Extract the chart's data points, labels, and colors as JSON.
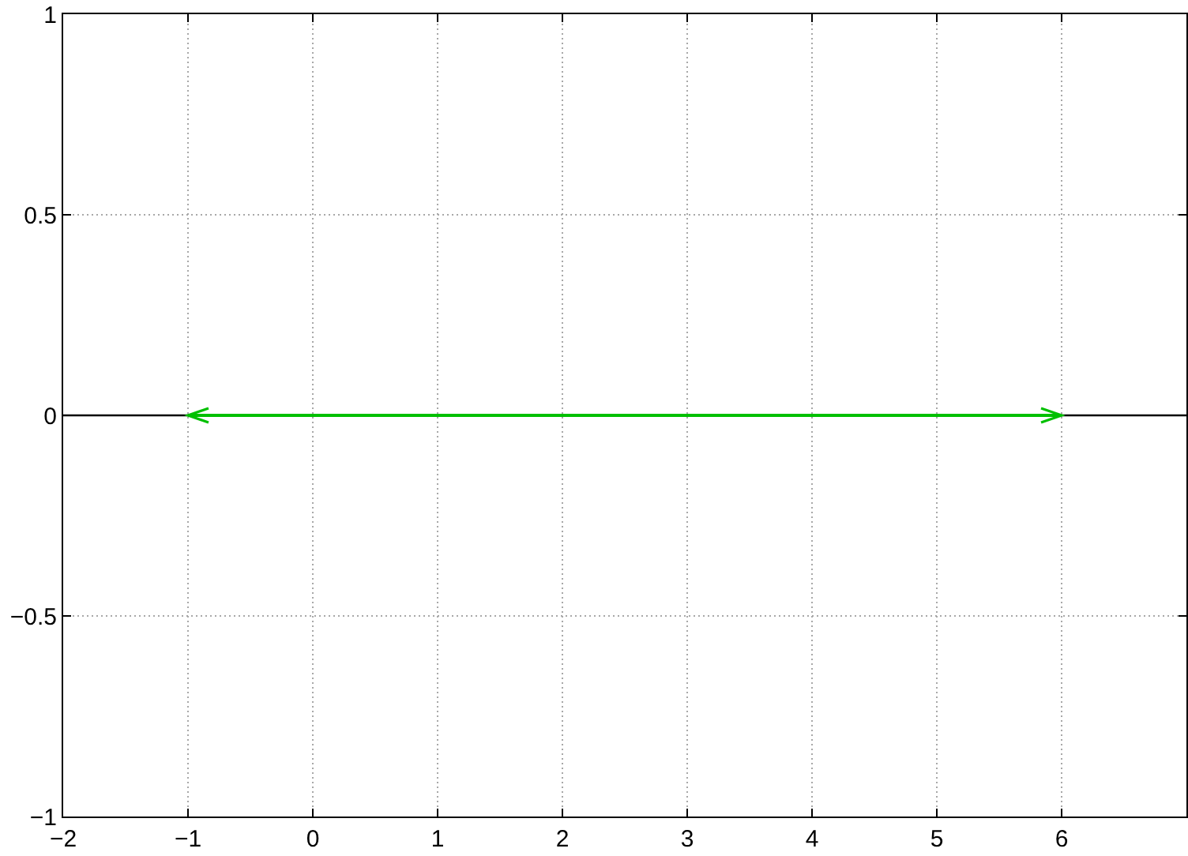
{
  "chart_data": {
    "type": "line",
    "x": [
      -1,
      6
    ],
    "series": [
      {
        "color": "#00c000",
        "values": [
          0,
          0
        ]
      }
    ],
    "xlim": [
      -2,
      7
    ],
    "xticks": [
      {
        "value": -2,
        "label": "−2"
      },
      {
        "value": -1,
        "label": "−1"
      },
      0,
      1,
      2,
      3,
      4,
      5,
      6
    ],
    "ylim": [
      -1,
      1
    ],
    "yticks": [
      {
        "value": -1,
        "label": "−1"
      },
      {
        "value": -0.5,
        "label": "−0.5"
      },
      0,
      0.5,
      1
    ],
    "grid": true,
    "line_style": "solid",
    "ref_lines": [
      {
        "axis": "y",
        "value": 0,
        "color": "#000000"
      }
    ]
  }
}
